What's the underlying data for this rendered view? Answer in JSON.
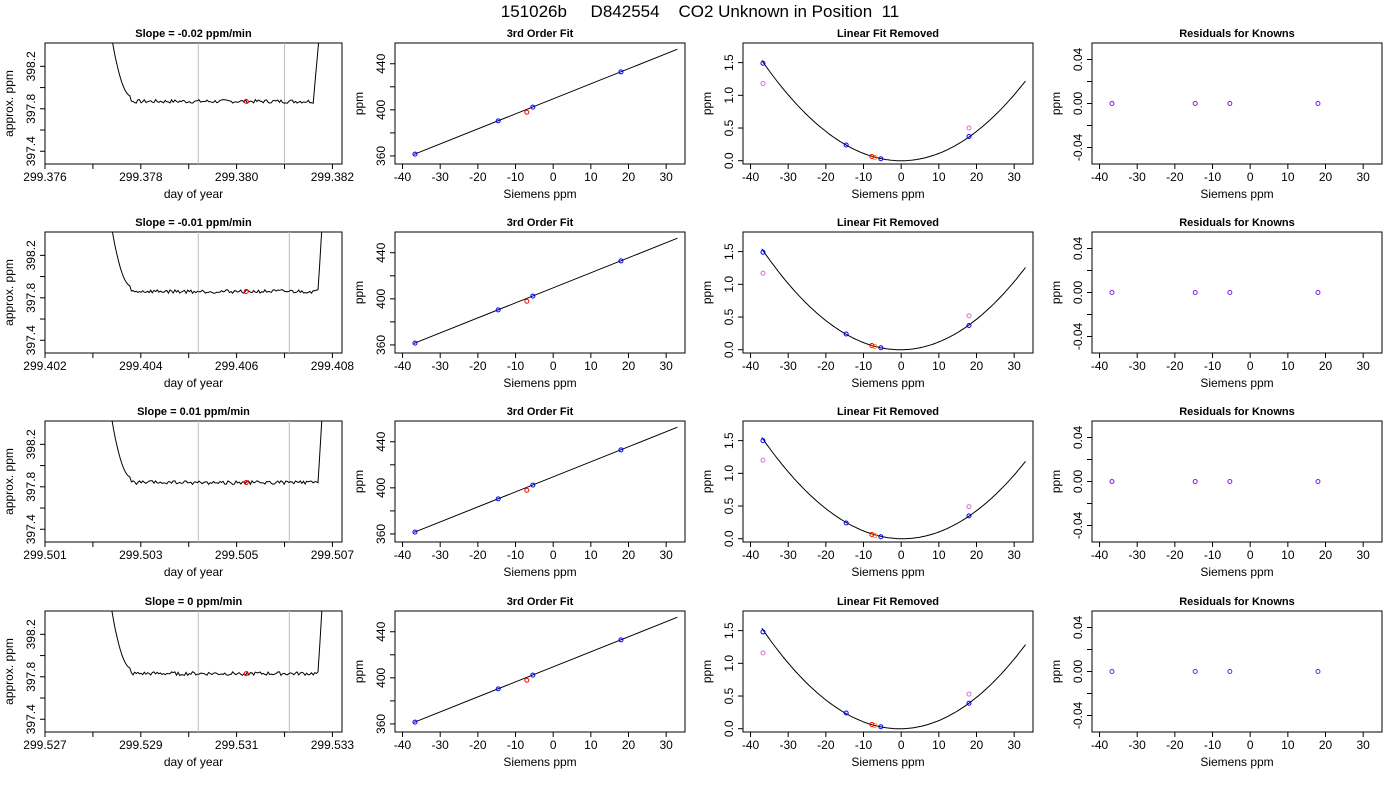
{
  "title": "151026b     D842554    CO2 Unknown in Position  11",
  "colors": {
    "trace": "#000000",
    "window": "#bebebe",
    "unknown": "#ff0000",
    "known": "#0000ff",
    "removed_unknown": "#ff8c00",
    "linear_known": "#da70d6"
  },
  "chart_data": [
    {
      "type": "line",
      "panel": "trace",
      "title": "Slope =  -0.02  ppm/min",
      "xlabel": "day of year",
      "ylabel": "approx. ppm",
      "xlim": [
        299.376,
        299.3822
      ],
      "ylim": [
        397.28,
        398.42
      ],
      "xticks": [
        299.376,
        299.377,
        299.378,
        299.379,
        299.38,
        299.381,
        299.382
      ],
      "xtick_labels": [
        "299.376",
        "",
        "299.378",
        "",
        "299.380",
        "",
        "299.382"
      ],
      "yticks": [
        397.4,
        397.6,
        397.8,
        398.0,
        398.2
      ],
      "ytick_labels": [
        "397.4",
        "",
        "397.8",
        "",
        "398.2"
      ],
      "trace_start": 299.3772,
      "trace_end": 299.3819,
      "trace_rise_start": 299.3778,
      "trace_rise_end": 299.3816,
      "trace_level": 397.87,
      "window": [
        299.3792,
        299.381
      ],
      "unknown_point": {
        "x": 299.3802,
        "y": 397.87
      }
    },
    {
      "type": "line",
      "panel": "fit",
      "title": "3rd Order Fit",
      "xlabel": "Siemens ppm",
      "ylabel": "ppm",
      "xlim": [
        -42,
        35
      ],
      "ylim": [
        353,
        458
      ],
      "xticks": [
        -40,
        -30,
        -20,
        -10,
        0,
        10,
        20,
        30
      ],
      "xtick_labels": [
        "-40",
        "-30",
        "-20",
        "-10",
        "0",
        "10",
        "20",
        "30"
      ],
      "yticks": [
        360,
        380,
        400,
        420,
        440
      ],
      "ytick_labels": [
        "360",
        "",
        "400",
        "",
        "440"
      ],
      "line": [
        [
          -37,
          361.3
        ],
        [
          33,
          452.6
        ]
      ],
      "known_points": [
        [
          -36.7,
          361.6
        ],
        [
          -14.6,
          390.4
        ],
        [
          -5.4,
          402.4
        ],
        [
          18.0,
          432.9
        ]
      ],
      "unknown_point": [
        -7.0,
        397.9
      ]
    },
    {
      "type": "scatter",
      "panel": "linear",
      "title": "Linear Fit Removed",
      "xlabel": "Siemens ppm",
      "ylabel": "ppm",
      "xlim": [
        -42,
        35
      ],
      "ylim": [
        -0.05,
        1.8
      ],
      "xticks": [
        -40,
        -30,
        -20,
        -10,
        0,
        10,
        20,
        30
      ],
      "xtick_labels": [
        "-40",
        "-30",
        "-20",
        "-10",
        "0",
        "10",
        "20",
        "30"
      ],
      "yticks": [
        0.0,
        0.5,
        1.0,
        1.5
      ],
      "ytick_labels": [
        "0.0",
        "0.5",
        "1.0",
        "1.5"
      ],
      "curve_a": 0.00112,
      "curve_b": 0.0,
      "known_points": [
        [
          -36.7,
          1.49
        ],
        [
          -14.6,
          0.24
        ],
        [
          -5.4,
          0.03
        ],
        [
          18.0,
          0.37
        ]
      ],
      "linear_known_points": [
        [
          -36.7,
          1.18
        ],
        [
          18.0,
          0.5
        ]
      ],
      "unknown_point": [
        -7.0,
        0.05
      ]
    },
    {
      "type": "scatter",
      "panel": "resid",
      "title": "Residuals for Knowns",
      "xlabel": "Siemens ppm",
      "ylabel": "ppm",
      "xlim": [
        -42,
        35
      ],
      "ylim": [
        -0.055,
        0.055
      ],
      "xticks": [
        -40,
        -30,
        -20,
        -10,
        0,
        10,
        20,
        30
      ],
      "xtick_labels": [
        "-40",
        "-30",
        "-20",
        "-10",
        "0",
        "10",
        "20",
        "30"
      ],
      "yticks": [
        -0.04,
        -0.02,
        0.0,
        0.02,
        0.04
      ],
      "ytick_labels": [
        "-0.04",
        "",
        "0.00",
        "",
        "0.04"
      ],
      "known_points": [
        [
          -36.7,
          0.0
        ],
        [
          -14.6,
          0.0
        ],
        [
          -5.4,
          0.0
        ],
        [
          18.0,
          0.0
        ]
      ]
    },
    {
      "type": "line",
      "panel": "trace",
      "title": "Slope =  -0.01  ppm/min",
      "xlabel": "day of year",
      "ylabel": "approx. ppm",
      "xlim": [
        299.402,
        299.4082
      ],
      "ylim": [
        397.28,
        398.42
      ],
      "xticks": [
        299.402,
        299.403,
        299.404,
        299.405,
        299.406,
        299.407,
        299.408
      ],
      "xtick_labels": [
        "299.402",
        "",
        "299.404",
        "",
        "299.406",
        "",
        "299.408"
      ],
      "yticks": [
        397.4,
        397.6,
        397.8,
        398.0,
        398.2
      ],
      "ytick_labels": [
        "397.4",
        "",
        "397.8",
        "",
        "398.2"
      ],
      "trace_start": 299.4032,
      "trace_end": 299.4079,
      "trace_rise_start": 299.4038,
      "trace_rise_end": 299.4077,
      "trace_level": 397.86,
      "window": [
        299.4052,
        299.4071
      ],
      "unknown_point": {
        "x": 299.4062,
        "y": 397.86
      }
    },
    {
      "type": "line",
      "panel": "fit",
      "title": "3rd Order Fit",
      "xlabel": "Siemens ppm",
      "ylabel": "ppm",
      "xlim": [
        -42,
        35
      ],
      "ylim": [
        353,
        458
      ],
      "xticks": [
        -40,
        -30,
        -20,
        -10,
        0,
        10,
        20,
        30
      ],
      "xtick_labels": [
        "-40",
        "-30",
        "-20",
        "-10",
        "0",
        "10",
        "20",
        "30"
      ],
      "yticks": [
        360,
        380,
        400,
        420,
        440
      ],
      "ytick_labels": [
        "360",
        "",
        "400",
        "",
        "440"
      ],
      "line": [
        [
          -37,
          361.3
        ],
        [
          33,
          452.6
        ]
      ],
      "known_points": [
        [
          -36.7,
          361.6
        ],
        [
          -14.6,
          390.4
        ],
        [
          -5.4,
          402.4
        ],
        [
          18.0,
          432.9
        ]
      ],
      "unknown_point": [
        -7.0,
        397.9
      ]
    },
    {
      "type": "scatter",
      "panel": "linear",
      "title": "Linear Fit Removed",
      "xlabel": "Siemens ppm",
      "ylabel": "ppm",
      "xlim": [
        -42,
        35
      ],
      "ylim": [
        -0.05,
        1.8
      ],
      "xticks": [
        -40,
        -30,
        -20,
        -10,
        0,
        10,
        20,
        30
      ],
      "xtick_labels": [
        "-40",
        "-30",
        "-20",
        "-10",
        "0",
        "10",
        "20",
        "30"
      ],
      "yticks": [
        0.0,
        0.5,
        1.0,
        1.5
      ],
      "ytick_labels": [
        "0.0",
        "0.5",
        "1.0",
        "1.5"
      ],
      "curve_a": 0.00114,
      "curve_b": 0.0005,
      "known_points": [
        [
          -36.7,
          1.49
        ],
        [
          -14.6,
          0.24
        ],
        [
          -5.4,
          0.03
        ],
        [
          18.0,
          0.37
        ]
      ],
      "linear_known_points": [
        [
          -36.7,
          1.17
        ],
        [
          18.0,
          0.52
        ]
      ],
      "unknown_point": [
        -7.0,
        0.05
      ]
    },
    {
      "type": "scatter",
      "panel": "resid",
      "title": "Residuals for Knowns",
      "xlabel": "Siemens ppm",
      "ylabel": "ppm",
      "xlim": [
        -42,
        35
      ],
      "ylim": [
        -0.055,
        0.055
      ],
      "xticks": [
        -40,
        -30,
        -20,
        -10,
        0,
        10,
        20,
        30
      ],
      "xtick_labels": [
        "-40",
        "-30",
        "-20",
        "-10",
        "0",
        "10",
        "20",
        "30"
      ],
      "yticks": [
        -0.04,
        -0.02,
        0.0,
        0.02,
        0.04
      ],
      "ytick_labels": [
        "-0.04",
        "",
        "0.00",
        "",
        "0.04"
      ],
      "known_points": [
        [
          -36.7,
          0.0
        ],
        [
          -14.6,
          0.0
        ],
        [
          -5.4,
          0.0
        ],
        [
          18.0,
          0.0
        ]
      ]
    },
    {
      "type": "line",
      "panel": "trace",
      "title": "Slope =  0.01  ppm/min",
      "xlabel": "day of year",
      "ylabel": "approx. ppm",
      "xlim": [
        299.501,
        299.5072
      ],
      "ylim": [
        397.28,
        398.42
      ],
      "xticks": [
        299.501,
        299.502,
        299.503,
        299.504,
        299.505,
        299.506,
        299.507
      ],
      "xtick_labels": [
        "299.501",
        "",
        "299.503",
        "",
        "299.505",
        "",
        "299.507"
      ],
      "yticks": [
        397.4,
        397.6,
        397.8,
        398.0,
        398.2
      ],
      "ytick_labels": [
        "397.4",
        "",
        "397.8",
        "",
        "398.2"
      ],
      "trace_start": 299.5022,
      "trace_end": 299.5069,
      "trace_rise_start": 299.5028,
      "trace_rise_end": 299.5067,
      "trace_level": 397.84,
      "window": [
        299.5042,
        299.5061
      ],
      "unknown_point": {
        "x": 299.5052,
        "y": 397.84
      }
    },
    {
      "type": "line",
      "panel": "fit",
      "title": "3rd Order Fit",
      "xlabel": "Siemens ppm",
      "ylabel": "ppm",
      "xlim": [
        -42,
        35
      ],
      "ylim": [
        353,
        458
      ],
      "xticks": [
        -40,
        -30,
        -20,
        -10,
        0,
        10,
        20,
        30
      ],
      "xtick_labels": [
        "-40",
        "-30",
        "-20",
        "-10",
        "0",
        "10",
        "20",
        "30"
      ],
      "yticks": [
        360,
        380,
        400,
        420,
        440
      ],
      "ytick_labels": [
        "360",
        "",
        "400",
        "",
        "440"
      ],
      "line": [
        [
          -37,
          361.3
        ],
        [
          33,
          452.6
        ]
      ],
      "known_points": [
        [
          -36.7,
          361.6
        ],
        [
          -14.6,
          390.4
        ],
        [
          -5.4,
          402.4
        ],
        [
          18.0,
          432.9
        ]
      ],
      "unknown_point": [
        -7.0,
        397.9
      ]
    },
    {
      "type": "scatter",
      "panel": "linear",
      "title": "Linear Fit Removed",
      "xlabel": "Siemens ppm",
      "ylabel": "ppm",
      "xlim": [
        -42,
        35
      ],
      "ylim": [
        -0.05,
        1.8
      ],
      "xticks": [
        -40,
        -30,
        -20,
        -10,
        0,
        10,
        20,
        30
      ],
      "xtick_labels": [
        "-40",
        "-30",
        "-20",
        "-10",
        "0",
        "10",
        "20",
        "30"
      ],
      "yticks": [
        0.0,
        0.5,
        1.0,
        1.5
      ],
      "ytick_labels": [
        "0.0",
        "0.5",
        "1.0",
        "1.5"
      ],
      "curve_a": 0.00111,
      "curve_b": -0.0008,
      "known_points": [
        [
          -36.7,
          1.5
        ],
        [
          -14.6,
          0.24
        ],
        [
          -5.4,
          0.03
        ],
        [
          18.0,
          0.35
        ]
      ],
      "linear_known_points": [
        [
          -36.7,
          1.2
        ],
        [
          18.0,
          0.49
        ]
      ],
      "unknown_point": [
        -7.0,
        0.05
      ]
    },
    {
      "type": "scatter",
      "panel": "resid",
      "title": "Residuals for Knowns",
      "xlabel": "Siemens ppm",
      "ylabel": "ppm",
      "xlim": [
        -42,
        35
      ],
      "ylim": [
        -0.055,
        0.055
      ],
      "xticks": [
        -40,
        -30,
        -20,
        -10,
        0,
        10,
        20,
        30
      ],
      "xtick_labels": [
        "-40",
        "-30",
        "-20",
        "-10",
        "0",
        "10",
        "20",
        "30"
      ],
      "yticks": [
        -0.04,
        -0.02,
        0.0,
        0.02,
        0.04
      ],
      "ytick_labels": [
        "-0.04",
        "",
        "0.00",
        "",
        "0.04"
      ],
      "known_points": [
        [
          -36.7,
          0.0
        ],
        [
          -14.6,
          0.0
        ],
        [
          -5.4,
          0.0
        ],
        [
          18.0,
          0.0
        ]
      ]
    },
    {
      "type": "line",
      "panel": "trace",
      "title": "Slope =  0  ppm/min",
      "xlabel": "day of year",
      "ylabel": "approx. ppm",
      "xlim": [
        299.527,
        299.5332
      ],
      "ylim": [
        397.28,
        398.42
      ],
      "xticks": [
        299.527,
        299.528,
        299.529,
        299.53,
        299.531,
        299.532,
        299.533
      ],
      "xtick_labels": [
        "299.527",
        "",
        "299.529",
        "",
        "299.531",
        "",
        "299.533"
      ],
      "yticks": [
        397.4,
        397.6,
        397.8,
        398.0,
        398.2
      ],
      "ytick_labels": [
        "397.4",
        "",
        "397.8",
        "",
        "398.2"
      ],
      "trace_start": 299.5282,
      "trace_end": 299.5329,
      "trace_rise_start": 299.5288,
      "trace_rise_end": 299.5327,
      "trace_level": 397.83,
      "window": [
        299.5302,
        299.5321
      ],
      "unknown_point": {
        "x": 299.5312,
        "y": 397.83
      }
    },
    {
      "type": "line",
      "panel": "fit",
      "title": "3rd Order Fit",
      "xlabel": "Siemens ppm",
      "ylabel": "ppm",
      "xlim": [
        -42,
        35
      ],
      "ylim": [
        353,
        458
      ],
      "xticks": [
        -40,
        -30,
        -20,
        -10,
        0,
        10,
        20,
        30
      ],
      "xtick_labels": [
        "-40",
        "-30",
        "-20",
        "-10",
        "0",
        "10",
        "20",
        "30"
      ],
      "yticks": [
        360,
        380,
        400,
        420,
        440
      ],
      "ytick_labels": [
        "360",
        "",
        "400",
        "",
        "440"
      ],
      "line": [
        [
          -37,
          361.3
        ],
        [
          33,
          452.6
        ]
      ],
      "known_points": [
        [
          -36.7,
          361.6
        ],
        [
          -14.6,
          390.4
        ],
        [
          -5.4,
          402.4
        ],
        [
          18.0,
          432.9
        ]
      ],
      "unknown_point": [
        -7.0,
        397.9
      ]
    },
    {
      "type": "scatter",
      "panel": "linear",
      "title": "Linear Fit Removed",
      "xlabel": "Siemens ppm",
      "ylabel": "ppm",
      "xlim": [
        -42,
        35
      ],
      "ylim": [
        -0.05,
        1.8
      ],
      "xticks": [
        -40,
        -30,
        -20,
        -10,
        0,
        10,
        20,
        30
      ],
      "xtick_labels": [
        "-40",
        "-30",
        "-20",
        "-10",
        "0",
        "10",
        "20",
        "30"
      ],
      "yticks": [
        0.0,
        0.5,
        1.0,
        1.5
      ],
      "ytick_labels": [
        "0.0",
        "0.5",
        "1.0",
        "1.5"
      ],
      "curve_a": 0.00115,
      "curve_b": 0.001,
      "known_points": [
        [
          -36.7,
          1.48
        ],
        [
          -14.6,
          0.24
        ],
        [
          -5.4,
          0.03
        ],
        [
          18.0,
          0.39
        ]
      ],
      "linear_known_points": [
        [
          -36.7,
          1.16
        ],
        [
          18.0,
          0.53
        ]
      ],
      "unknown_point": [
        -7.0,
        0.05
      ]
    },
    {
      "type": "scatter",
      "panel": "resid",
      "title": "Residuals for Knowns",
      "xlabel": "Siemens ppm",
      "ylabel": "ppm",
      "xlim": [
        -42,
        35
      ],
      "ylim": [
        -0.055,
        0.055
      ],
      "xticks": [
        -40,
        -30,
        -20,
        -10,
        0,
        10,
        20,
        30
      ],
      "xtick_labels": [
        "-40",
        "-30",
        "-20",
        "-10",
        "0",
        "10",
        "20",
        "30"
      ],
      "yticks": [
        -0.04,
        -0.02,
        0.0,
        0.02,
        0.04
      ],
      "ytick_labels": [
        "-0.04",
        "",
        "0.00",
        "",
        "0.04"
      ],
      "known_points": [
        [
          -36.7,
          0.0
        ],
        [
          -14.6,
          0.0
        ],
        [
          -5.4,
          0.0
        ],
        [
          18.0,
          0.0
        ]
      ]
    }
  ]
}
